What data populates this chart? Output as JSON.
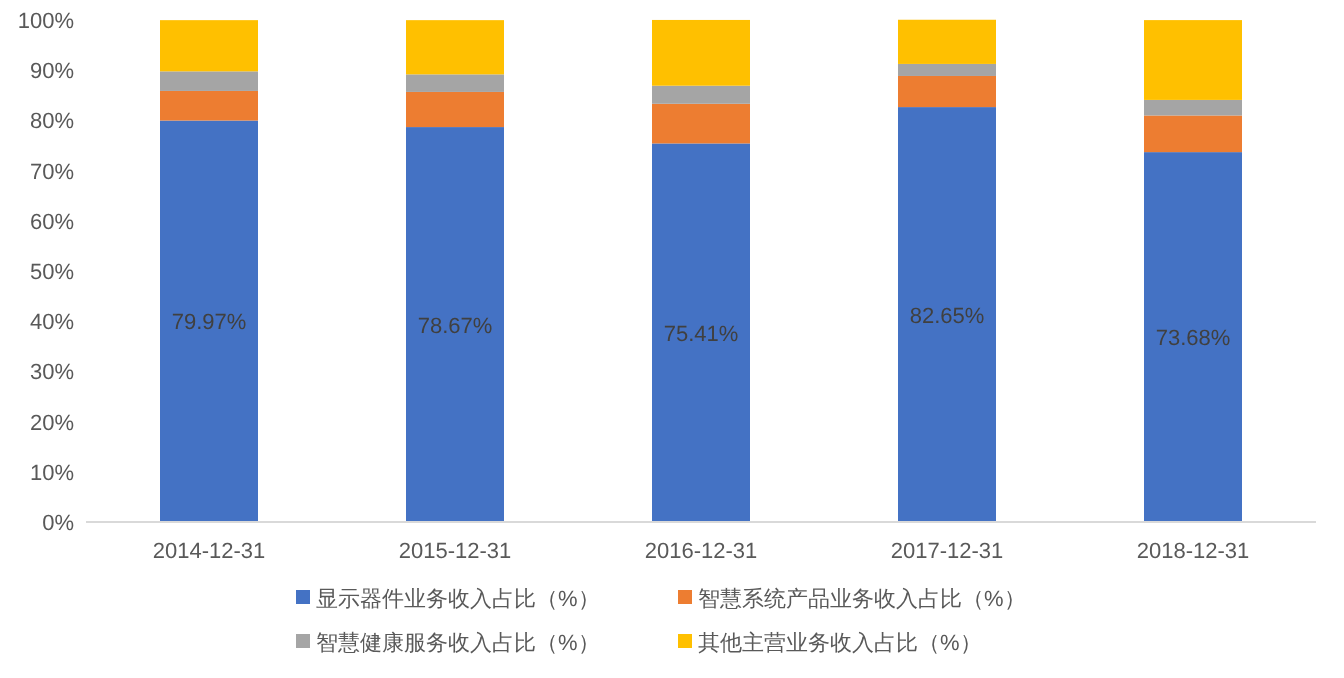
{
  "chart_data": {
    "type": "bar",
    "stacked": true,
    "categories": [
      "2014-12-31",
      "2015-12-31",
      "2016-12-31",
      "2017-12-31",
      "2018-12-31"
    ],
    "series": [
      {
        "name": "显示器件业务收入占比（%）",
        "color": "#4472c4",
        "values": [
          79.97,
          78.67,
          75.41,
          82.65,
          73.68
        ],
        "value_labels": [
          "79.97%",
          "78.67%",
          "75.41%",
          "82.65%",
          "73.68%"
        ]
      },
      {
        "name": "智慧系统产品业务收入占比（%）",
        "color": "#ed7d31",
        "values": [
          5.9,
          7.0,
          7.9,
          6.2,
          7.3
        ]
      },
      {
        "name": "智慧健康服务收入占比（%）",
        "color": "#a5a5a5",
        "values": [
          3.9,
          3.5,
          3.6,
          2.4,
          3.1
        ]
      },
      {
        "name": "其他主营业务收入占比（%）",
        "color": "#ffc000",
        "values": [
          10.2,
          10.8,
          13.1,
          8.8,
          15.9
        ]
      }
    ],
    "ylim": [
      0,
      100
    ],
    "yticks": [
      {
        "value": 0,
        "label": "0%"
      },
      {
        "value": 10,
        "label": "10%"
      },
      {
        "value": 20,
        "label": "20%"
      },
      {
        "value": 30,
        "label": "30%"
      },
      {
        "value": 40,
        "label": "40%"
      },
      {
        "value": 50,
        "label": "50%"
      },
      {
        "value": 60,
        "label": "60%"
      },
      {
        "value": 70,
        "label": "70%"
      },
      {
        "value": 80,
        "label": "80%"
      },
      {
        "value": 90,
        "label": "90%"
      },
      {
        "value": 100,
        "label": "100%"
      }
    ],
    "grid": false,
    "legend": "bottom"
  }
}
